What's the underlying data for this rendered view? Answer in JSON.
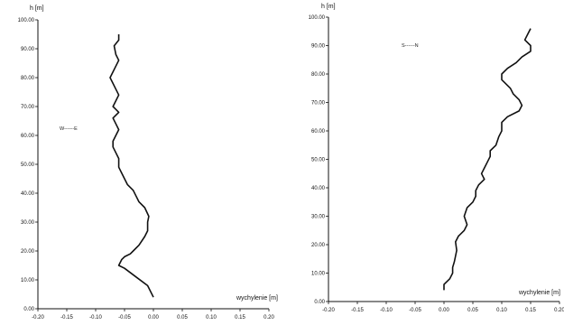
{
  "chart_data": [
    {
      "type": "line",
      "ylabel": "h [m]",
      "xlabel": "wychylenie [m]",
      "xlim": [
        -0.2,
        0.2
      ],
      "ylim": [
        0,
        100
      ],
      "xticks": [
        "-0.20",
        "-0.15",
        "-0.10",
        "-0.05",
        "0.00",
        "0.05",
        "0.10",
        "0.15",
        "0.20"
      ],
      "yticks": [
        "0.00",
        "10.00",
        "20.00",
        "30.00",
        "40.00",
        "50.00",
        "60.00",
        "70.00",
        "80.00",
        "90.00",
        "100.00"
      ],
      "legend": "W------E",
      "series": [
        {
          "x": [
            0.0,
            -0.01,
            -0.03,
            -0.05,
            -0.06,
            -0.055,
            -0.05,
            -0.04,
            -0.035,
            -0.025,
            -0.015,
            -0.01,
            -0.01,
            -0.008,
            -0.015,
            -0.025,
            -0.03,
            -0.035,
            -0.045,
            -0.05,
            -0.055,
            -0.06,
            -0.06,
            -0.065,
            -0.07,
            -0.07,
            -0.065,
            -0.06,
            -0.065,
            -0.07,
            -0.06,
            -0.07,
            -0.065,
            -0.06,
            -0.065,
            -0.07,
            -0.075,
            -0.07,
            -0.065,
            -0.06,
            -0.065,
            -0.068,
            -0.06,
            -0.06
          ],
          "y": [
            4,
            8,
            11,
            14,
            15,
            17,
            18,
            19,
            20,
            22,
            25,
            27,
            30,
            32,
            35,
            37,
            39,
            41,
            43,
            45,
            47,
            49,
            52,
            54,
            56,
            58,
            60,
            62,
            64,
            66,
            68,
            70,
            72,
            74,
            76,
            78,
            80,
            82,
            84,
            86,
            88,
            91,
            93,
            95
          ]
        }
      ]
    },
    {
      "type": "line",
      "ylabel": "h [m]",
      "xlabel": "wychylenie [m]",
      "xlim": [
        -0.2,
        0.2
      ],
      "ylim": [
        0,
        100
      ],
      "xticks": [
        "-0.20",
        "-0.15",
        "-0.10",
        "-0.05",
        "0.00",
        "0.05",
        "0.10",
        "0.15",
        "0.20"
      ],
      "yticks": [
        "0.00",
        "10.00",
        "20.00",
        "30.00",
        "40.00",
        "50.00",
        "60.00",
        "70.00",
        "80.00",
        "90.00",
        "100.00"
      ],
      "legend": "S------N",
      "series": [
        {
          "x": [
            0.0,
            0.0,
            0.01,
            0.015,
            0.015,
            0.018,
            0.02,
            0.022,
            0.02,
            0.025,
            0.035,
            0.04,
            0.035,
            0.04,
            0.05,
            0.055,
            0.055,
            0.06,
            0.07,
            0.065,
            0.07,
            0.075,
            0.08,
            0.08,
            0.09,
            0.095,
            0.1,
            0.1,
            0.11,
            0.13,
            0.135,
            0.13,
            0.12,
            0.115,
            0.1,
            0.1,
            0.11,
            0.125,
            0.135,
            0.15,
            0.15,
            0.14,
            0.145,
            0.15
          ],
          "y": [
            4,
            6,
            8,
            10,
            12,
            14,
            16,
            18,
            21,
            23,
            25,
            27,
            30,
            33,
            35,
            37,
            39,
            41,
            43,
            45,
            47,
            49,
            51,
            53,
            55,
            58,
            60,
            63,
            65,
            67,
            69,
            71,
            73,
            75,
            78,
            80,
            82,
            84,
            86,
            88,
            90,
            92,
            94,
            96
          ]
        }
      ]
    }
  ]
}
